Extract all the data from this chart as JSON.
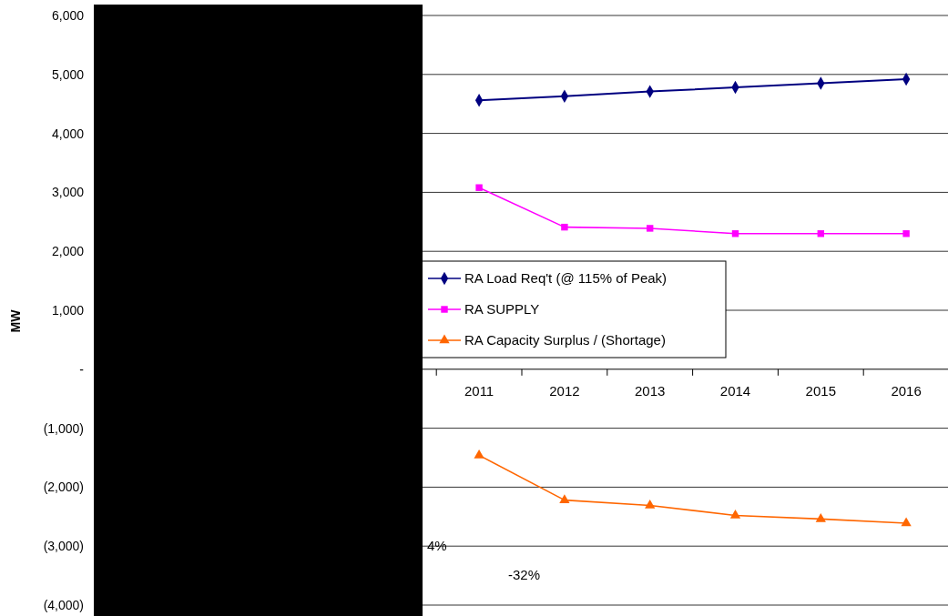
{
  "chart_data": {
    "type": "line",
    "ylabel": "MW",
    "categories": [
      null,
      null,
      null,
      null,
      "2011",
      "2012",
      "2013",
      "2014",
      "2015",
      "2016"
    ],
    "series": [
      {
        "name": "RA Load Req't (@ 115% of Peak)",
        "color": "#000080",
        "marker": "diamond",
        "values": [
          null,
          null,
          null,
          null,
          4560,
          4630,
          4710,
          4780,
          4850,
          4920
        ]
      },
      {
        "name": "RA SUPPLY",
        "color": "#ff00ff",
        "marker": "square",
        "values": [
          null,
          null,
          null,
          null,
          3080,
          2410,
          2390,
          2300,
          2300,
          2300
        ]
      },
      {
        "name": "RA Capacity Surplus / (Shortage)",
        "color": "#ff6600",
        "marker": "triangle",
        "values": [
          null,
          null,
          null,
          null,
          -1460,
          -2220,
          -2310,
          -2480,
          -2540,
          -2610
        ]
      }
    ],
    "ylim": [
      -4000,
      6000
    ],
    "yticks": [
      {
        "value": 6000,
        "label": "6,000"
      },
      {
        "value": 5000,
        "label": "5,000"
      },
      {
        "value": 4000,
        "label": "4,000"
      },
      {
        "value": 3000,
        "label": "3,000"
      },
      {
        "value": 2000,
        "label": "2,000"
      },
      {
        "value": 1000,
        "label": "1,000"
      },
      {
        "value": 0,
        "label": "-"
      },
      {
        "value": -1000,
        "label": "(1,000)"
      },
      {
        "value": -2000,
        "label": "(2,000)"
      },
      {
        "value": -3000,
        "label": "(3,000)"
      },
      {
        "value": -4000,
        "label": "(4,000)"
      }
    ],
    "grid": "y",
    "legend": "center left",
    "annotations": [
      "4%",
      "-32%"
    ]
  }
}
